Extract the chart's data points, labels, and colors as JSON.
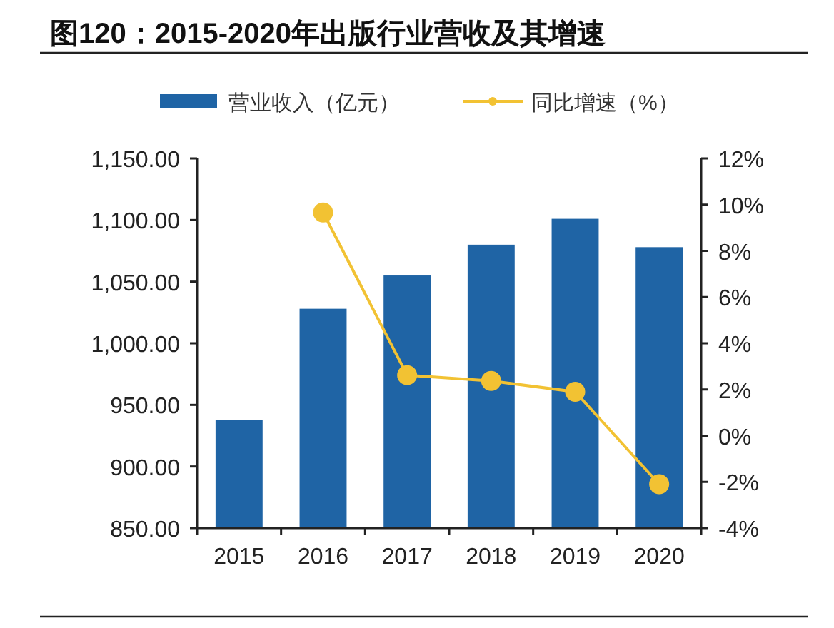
{
  "chart_data": {
    "type": "bar",
    "title": "图120：2015-2020年出版行业营收及其增速",
    "categories": [
      "2015",
      "2016",
      "2017",
      "2018",
      "2019",
      "2020"
    ],
    "series": [
      {
        "name": "营业收入（亿元）",
        "color": "#1f64a5",
        "values": [
          938,
          1028,
          1055,
          1080,
          1101,
          1078
        ]
      },
      {
        "name": "同比增速（%）",
        "type": "line",
        "axis": "y2",
        "color": "#f2c233",
        "marker": "circle",
        "values": [
          null,
          9.66,
          2.62,
          2.37,
          1.9,
          -2.1
        ]
      }
    ],
    "ylim": [
      850,
      1150
    ],
    "yticks": [
      {
        "value": 850,
        "label": "850.00"
      },
      {
        "value": 900,
        "label": "900.00"
      },
      {
        "value": 950,
        "label": "950.00"
      },
      {
        "value": 1000,
        "label": "1,000.00"
      },
      {
        "value": 1050,
        "label": "1,050.00"
      },
      {
        "value": 1100,
        "label": "1,100.00"
      },
      {
        "value": 1150,
        "label": "1,150.00"
      }
    ],
    "y2lim": [
      -4,
      12
    ],
    "y2ticks": [
      {
        "value": -4,
        "label": "-4%"
      },
      {
        "value": -2,
        "label": "-2%"
      },
      {
        "value": 0,
        "label": "0%"
      },
      {
        "value": 2,
        "label": "2%"
      },
      {
        "value": 4,
        "label": "4%"
      },
      {
        "value": 6,
        "label": "6%"
      },
      {
        "value": 8,
        "label": "8%"
      },
      {
        "value": 10,
        "label": "10%"
      },
      {
        "value": 12,
        "label": "12%"
      }
    ],
    "legend": "top",
    "grid": false
  }
}
